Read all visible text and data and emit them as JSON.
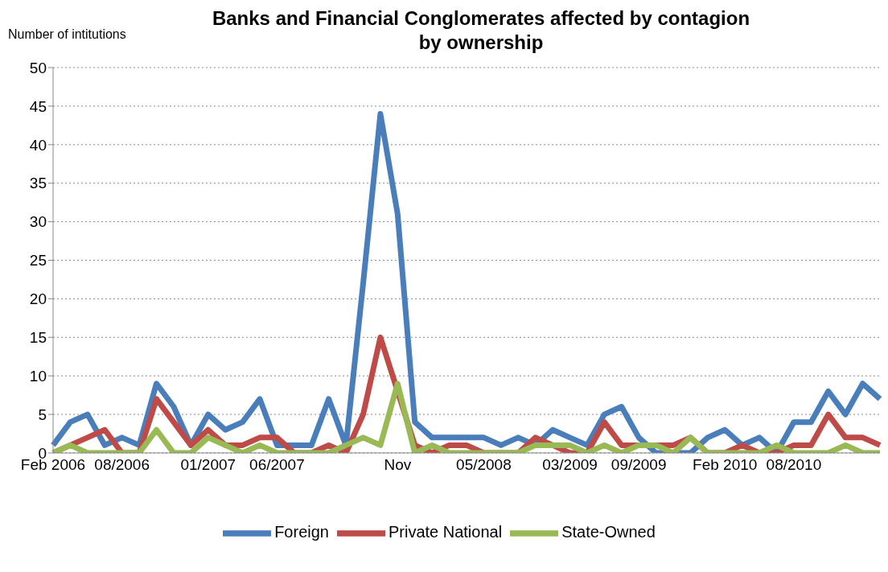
{
  "chart_data": {
    "type": "line",
    "title": "Banks and Financial Conglomerates affected by contagion by ownership",
    "ylabel": "Number of intitutions",
    "categories": [
      "Feb 2006",
      null,
      null,
      null,
      "08/2006",
      null,
      null,
      null,
      null,
      "01/2007",
      null,
      null,
      null,
      "06/2007",
      null,
      null,
      null,
      null,
      null,
      null,
      "Nov",
      null,
      null,
      null,
      null,
      "05/2008",
      null,
      null,
      null,
      null,
      "03/2009",
      null,
      null,
      null,
      "09/2009",
      null,
      null,
      null,
      null,
      "Feb 2010",
      null,
      null,
      null,
      "08/2010",
      null,
      null,
      null,
      null,
      null
    ],
    "series": [
      {
        "name": "Foreign",
        "color": "#4a7ebb",
        "values": [
          1,
          4,
          5,
          1,
          2,
          1,
          9,
          6,
          1,
          5,
          3,
          4,
          7,
          1,
          1,
          1,
          7,
          1,
          22,
          44,
          31,
          4,
          2,
          2,
          2,
          2,
          1,
          2,
          1,
          3,
          2,
          1,
          5,
          6,
          2,
          0,
          0,
          0,
          2,
          3,
          1,
          2,
          0,
          4,
          4,
          8,
          5,
          9,
          7
        ]
      },
      {
        "name": "Private National",
        "color": "#be4b48",
        "values": [
          0,
          1,
          2,
          3,
          0,
          0,
          7,
          4,
          1,
          3,
          1,
          1,
          2,
          2,
          0,
          0,
          1,
          0,
          5,
          15,
          8,
          1,
          0,
          1,
          1,
          0,
          0,
          0,
          2,
          1,
          0,
          0,
          4,
          1,
          1,
          1,
          1,
          2,
          0,
          0,
          1,
          0,
          0,
          1,
          1,
          5,
          2,
          2,
          1
        ]
      },
      {
        "name": "State-Owned",
        "color": "#98b954",
        "values": [
          0,
          1,
          0,
          0,
          0,
          0,
          3,
          0,
          0,
          2,
          1,
          0,
          1,
          0,
          0,
          0,
          0,
          1,
          2,
          1,
          9,
          0,
          1,
          0,
          0,
          0,
          0,
          0,
          1,
          1,
          1,
          0,
          1,
          0,
          1,
          1,
          0,
          2,
          0,
          0,
          0,
          0,
          1,
          0,
          0,
          0,
          1,
          0,
          0
        ]
      }
    ],
    "ylim": [
      0,
      50
    ],
    "yticks": [
      0,
      5,
      10,
      15,
      20,
      25,
      30,
      35,
      40,
      45,
      50
    ],
    "grid": "y",
    "legend": "bottom",
    "marker": "none",
    "line_style": "solid"
  }
}
